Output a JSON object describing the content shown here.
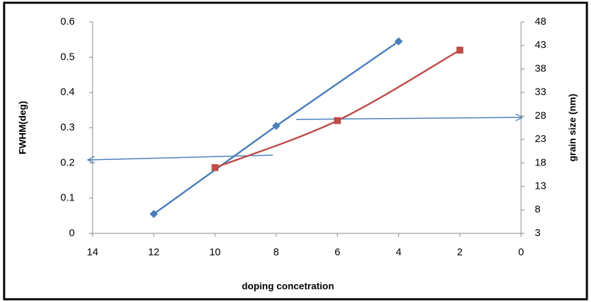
{
  "chart_data": {
    "type": "line",
    "xlabel": "doping concetration",
    "ylabel": "FWHM(deg)",
    "y2label": "grain size (nm)",
    "xlim": [
      14,
      0
    ],
    "xticks": [
      14,
      12,
      10,
      8,
      6,
      4,
      2,
      0
    ],
    "ylim": [
      0,
      0.6
    ],
    "yticks": [
      0,
      0.1,
      0.2,
      0.3,
      0.4,
      0.5,
      0.6
    ],
    "y2lim": [
      3,
      48
    ],
    "y2ticks": [
      3,
      8,
      13,
      18,
      23,
      28,
      33,
      38,
      43,
      48
    ],
    "grid": false,
    "series": [
      {
        "color": "#4a7ebb",
        "marker": "diamond",
        "smooth": false,
        "x": [
          12,
          8,
          4
        ],
        "values": [
          0.055,
          0.305,
          0.545
        ]
      },
      {
        "color": "#be4b48",
        "marker": "square",
        "smooth": true,
        "axis": "y2",
        "x": [
          10,
          6,
          2
        ],
        "values": [
          17,
          27,
          42
        ]
      }
    ]
  }
}
